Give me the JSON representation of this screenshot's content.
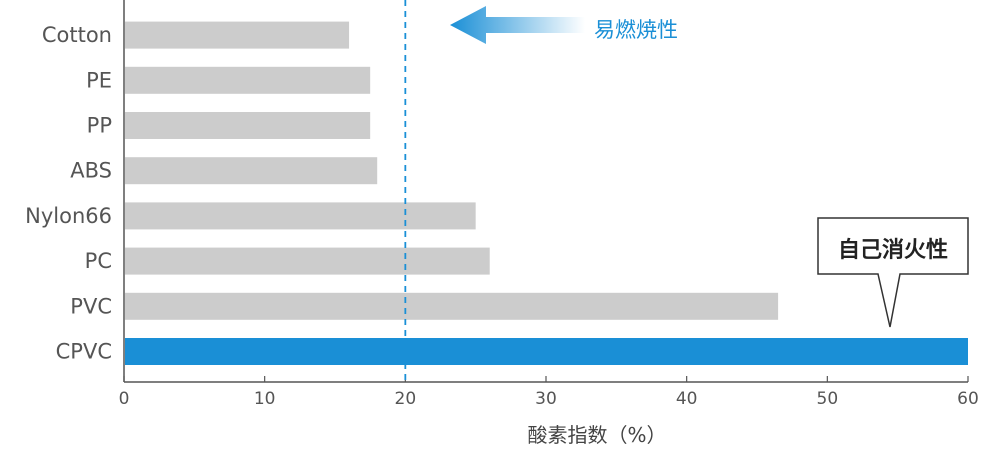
{
  "chart_data": {
    "type": "bar",
    "orientation": "horizontal",
    "categories": [
      "Cotton",
      "PE",
      "PP",
      "ABS",
      "Nylon66",
      "PC",
      "PVC",
      "CPVC"
    ],
    "values": [
      16,
      17.5,
      17.5,
      18,
      25,
      26,
      46.5,
      60
    ],
    "xlabel": "酸素指数（%）",
    "xlim": [
      0,
      60
    ],
    "xticks": [
      0,
      10,
      20,
      30,
      40,
      50,
      60
    ],
    "reference_line": 20,
    "highlight_category": "CPVC",
    "colors": {
      "bar": "#cccccc",
      "highlight": "#1a8fd6",
      "refline": "#1a8fd6",
      "axis": "#555555"
    },
    "annotations": {
      "flammable": "易燃焼性",
      "self_extinguishing": "自己消火性"
    },
    "grid": false
  }
}
